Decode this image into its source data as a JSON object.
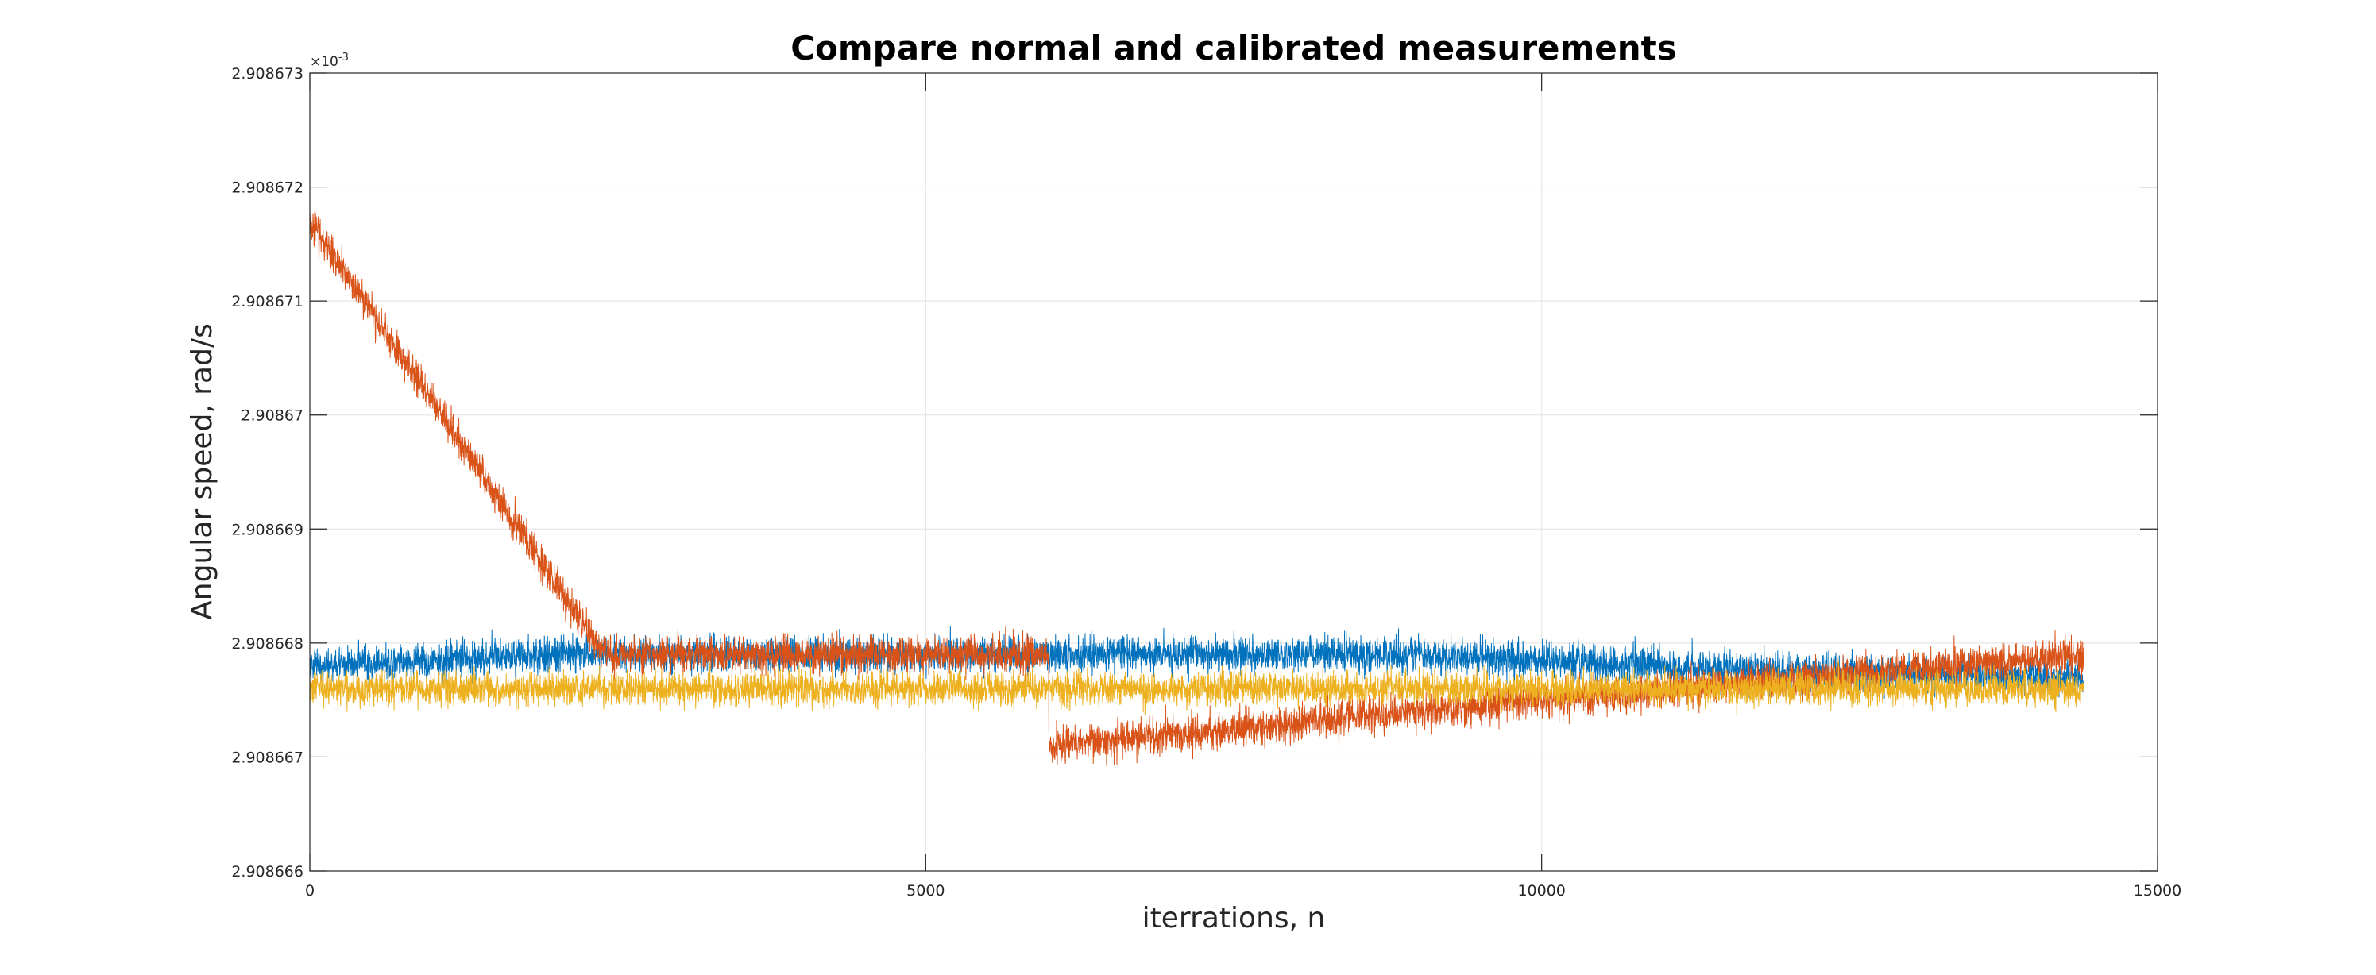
{
  "chart_data": {
    "type": "line",
    "title": "Compare normal and calibrated measurements",
    "xlabel": "iterrations, n",
    "ylabel": "Angular speed, rad/s",
    "y_exponent_label": "×10",
    "y_exponent_power": "-3",
    "xlim": [
      0,
      15000
    ],
    "ylim": [
      2.908666,
      2.908673
    ],
    "x_ticks": [
      0,
      5000,
      10000,
      15000
    ],
    "x_tick_labels": [
      "0",
      "5000",
      "10000",
      "15000"
    ],
    "y_ticks": [
      2.908666,
      2.908667,
      2.908668,
      2.908669,
      2.90867,
      2.908671,
      2.908672,
      2.908673
    ],
    "y_tick_labels": [
      "2.908666",
      "2.908667",
      "2.908668",
      "2.908669",
      "2.90867",
      "2.908671",
      "2.908672",
      "2.908673"
    ],
    "grid": true,
    "legend": "none",
    "n_points": 14400,
    "series": [
      {
        "color": "#0072BD",
        "x": [
          0,
          2000,
          6000,
          6000,
          9000,
          12000,
          14400
        ],
        "mean": [
          2.9086678,
          2.9086679,
          2.9086679,
          2.9086679,
          2.9086679,
          2.90866775,
          2.9086677
        ],
        "spread": [
          2.4e-07,
          2.6e-07,
          2.5e-07,
          2.6e-07,
          2.5e-07,
          2.5e-07,
          2.5e-07
        ]
      },
      {
        "color": "#D95319",
        "x": [
          0,
          2400,
          6000,
          6000,
          8000,
          10000,
          14400
        ],
        "mean": [
          2.9086717,
          2.9086679,
          2.9086679,
          2.9086671,
          2.9086673,
          2.9086675,
          2.9086679
        ],
        "spread": [
          2.6e-07,
          2.6e-07,
          2.6e-07,
          2.6e-07,
          2.6e-07,
          2.6e-07,
          2.6e-07
        ]
      },
      {
        "color": "#EDB120",
        "x": [
          0,
          6000,
          6000,
          10000,
          14400
        ],
        "mean": [
          2.9086676,
          2.9086676,
          2.9086676,
          2.9086676,
          2.9086676
        ],
        "spread": [
          2.4e-07,
          2.4e-07,
          2.4e-07,
          2.4e-07,
          2.4e-07
        ]
      }
    ]
  }
}
